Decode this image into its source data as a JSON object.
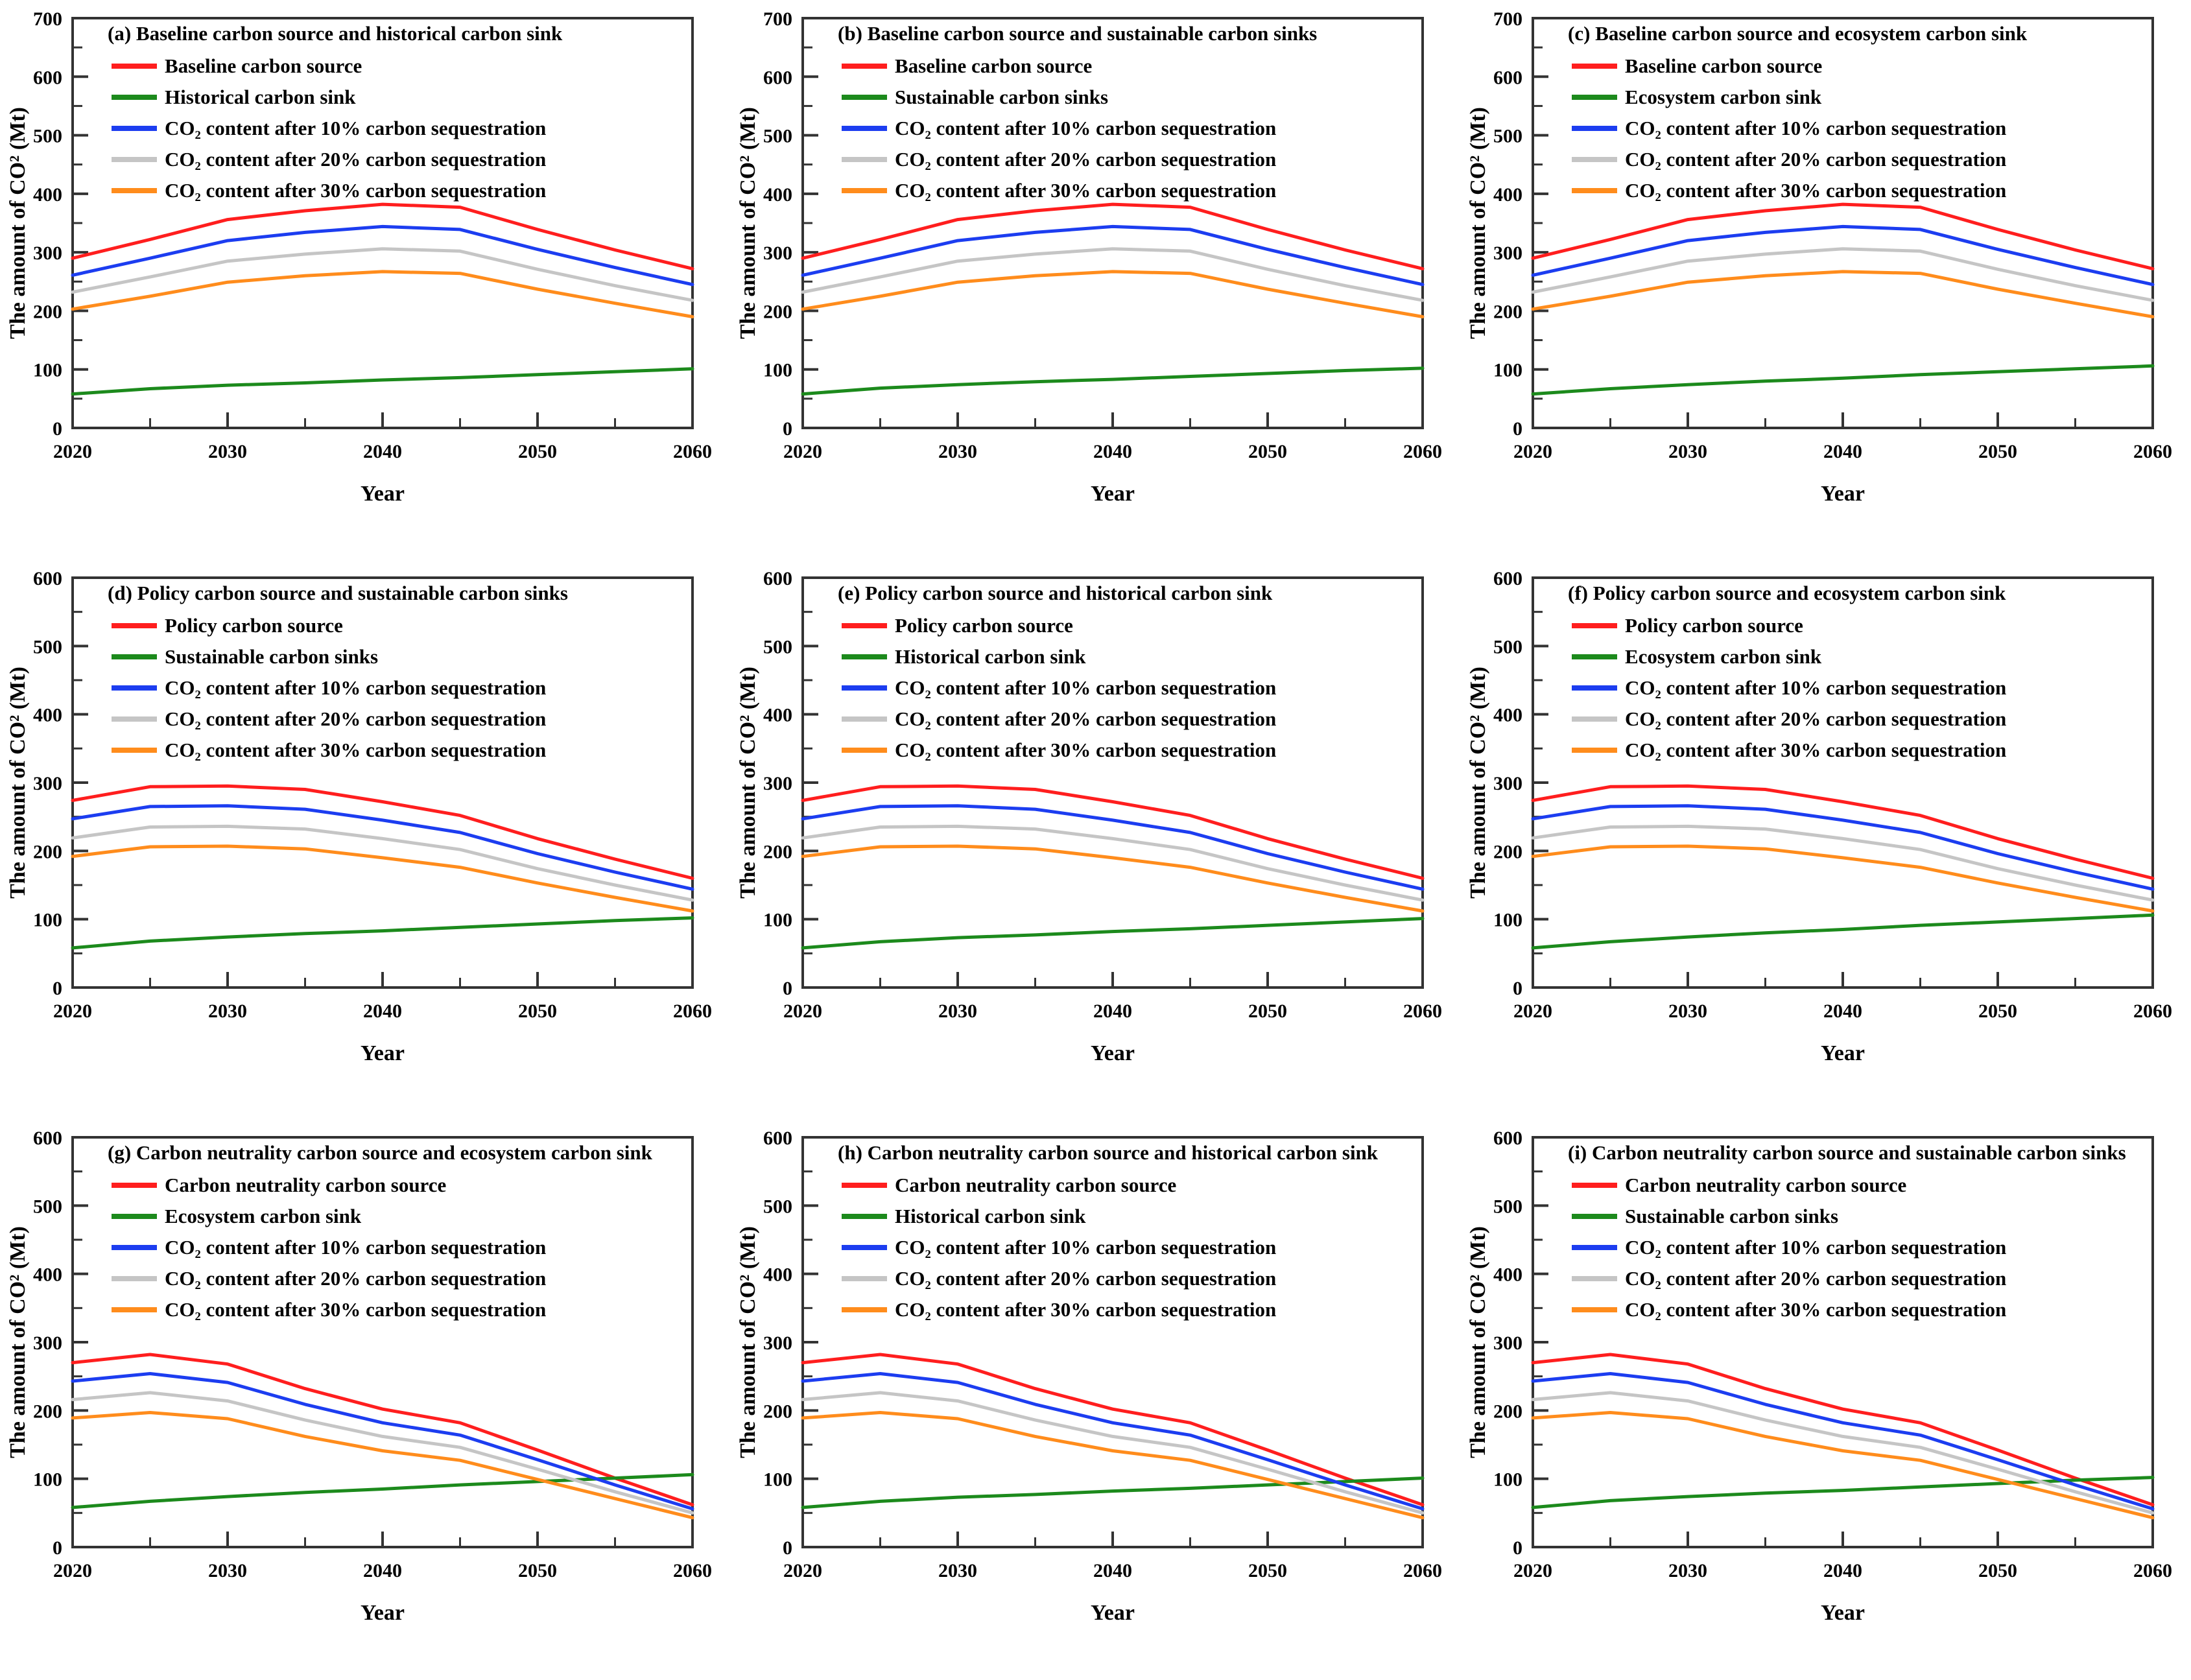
{
  "figure": {
    "background": "#ffffff",
    "xlabel": "Year",
    "ylabel": "The amount of CO² (Mt)"
  },
  "colors": {
    "source": "#FF1E1E",
    "sink": "#1C8A1C",
    "seq10": "#1C3DF0",
    "seq20": "#C5C5C5",
    "seq30": "#FF8C1C",
    "axis": "#333333",
    "text": "#000000"
  },
  "chart_data": [
    {
      "id": "a",
      "type": "line",
      "title": "(a) Baseline carbon source and historical carbon sink",
      "xlabel": "Year",
      "ylabel": "The amount of CO² (Mt)",
      "x": [
        2020,
        2025,
        2030,
        2035,
        2040,
        2045,
        2050,
        2055,
        2060
      ],
      "ylim": [
        0,
        700
      ],
      "y_major_step": 100,
      "y_minor_step": 50,
      "x_major_ticks": [
        2020,
        2030,
        2040,
        2050,
        2060
      ],
      "x_minor_step": 5,
      "grid": false,
      "legend_position": "top-left",
      "series": [
        {
          "name": "Baseline carbon source",
          "color_key": "source",
          "values": [
            290,
            322,
            356,
            371,
            382,
            377,
            339,
            304,
            272
          ]
        },
        {
          "name": "Historical carbon sink",
          "color_key": "sink",
          "values": [
            58,
            67,
            73,
            77,
            82,
            86,
            91,
            96,
            101
          ]
        },
        {
          "name": "CO₂ content after 10% carbon sequestration",
          "color_key": "seq10",
          "values": [
            261,
            290,
            320,
            334,
            344,
            339,
            305,
            274,
            245
          ]
        },
        {
          "name": "CO₂ content after 20% carbon sequestration",
          "color_key": "seq20",
          "values": [
            232,
            258,
            285,
            297,
            306,
            302,
            271,
            243,
            218
          ]
        },
        {
          "name": "CO₂ content after 30% carbon sequestration",
          "color_key": "seq30",
          "values": [
            203,
            225,
            249,
            260,
            267,
            264,
            237,
            213,
            190
          ]
        }
      ]
    },
    {
      "id": "b",
      "type": "line",
      "title": "(b) Baseline carbon source and sustainable carbon sinks",
      "xlabel": "Year",
      "ylabel": "The amount of CO² (Mt)",
      "x": [
        2020,
        2025,
        2030,
        2035,
        2040,
        2045,
        2050,
        2055,
        2060
      ],
      "ylim": [
        0,
        700
      ],
      "y_major_step": 100,
      "y_minor_step": 50,
      "x_major_ticks": [
        2020,
        2030,
        2040,
        2050,
        2060
      ],
      "x_minor_step": 5,
      "grid": false,
      "legend_position": "top-left",
      "series": [
        {
          "name": "Baseline carbon source",
          "color_key": "source",
          "values": [
            290,
            322,
            356,
            371,
            382,
            377,
            339,
            304,
            272
          ]
        },
        {
          "name": "Sustainable carbon sinks",
          "color_key": "sink",
          "values": [
            58,
            68,
            74,
            79,
            83,
            88,
            93,
            98,
            102
          ]
        },
        {
          "name": "CO₂ content after 10% carbon sequestration",
          "color_key": "seq10",
          "values": [
            261,
            290,
            320,
            334,
            344,
            339,
            305,
            274,
            245
          ]
        },
        {
          "name": "CO₂ content after 20% carbon sequestration",
          "color_key": "seq20",
          "values": [
            232,
            258,
            285,
            297,
            306,
            302,
            271,
            243,
            218
          ]
        },
        {
          "name": "CO₂ content after 30% carbon sequestration",
          "color_key": "seq30",
          "values": [
            203,
            225,
            249,
            260,
            267,
            264,
            237,
            213,
            190
          ]
        }
      ]
    },
    {
      "id": "c",
      "type": "line",
      "title": "(c) Baseline carbon source and ecosystem carbon sink",
      "xlabel": "Year",
      "ylabel": "The amount of CO² (Mt)",
      "x": [
        2020,
        2025,
        2030,
        2035,
        2040,
        2045,
        2050,
        2055,
        2060
      ],
      "ylim": [
        0,
        700
      ],
      "y_major_step": 100,
      "y_minor_step": 50,
      "x_major_ticks": [
        2020,
        2030,
        2040,
        2050,
        2060
      ],
      "x_minor_step": 5,
      "grid": false,
      "legend_position": "top-left",
      "series": [
        {
          "name": "Baseline carbon source",
          "color_key": "source",
          "values": [
            290,
            322,
            356,
            371,
            382,
            377,
            339,
            304,
            272
          ]
        },
        {
          "name": "Ecosystem carbon sink",
          "color_key": "sink",
          "values": [
            58,
            67,
            74,
            80,
            85,
            91,
            96,
            101,
            106
          ]
        },
        {
          "name": "CO₂ content after 10% carbon sequestration",
          "color_key": "seq10",
          "values": [
            261,
            290,
            320,
            334,
            344,
            339,
            305,
            274,
            245
          ]
        },
        {
          "name": "CO₂ content after 20% carbon sequestration",
          "color_key": "seq20",
          "values": [
            232,
            258,
            285,
            297,
            306,
            302,
            271,
            243,
            218
          ]
        },
        {
          "name": "CO₂ content after 30% carbon sequestration",
          "color_key": "seq30",
          "values": [
            203,
            225,
            249,
            260,
            267,
            264,
            237,
            213,
            190
          ]
        }
      ]
    },
    {
      "id": "d",
      "type": "line",
      "title": "(d) Policy carbon source and sustainable carbon sinks",
      "xlabel": "Year",
      "ylabel": "The amount of CO² (Mt)",
      "x": [
        2020,
        2025,
        2030,
        2035,
        2040,
        2045,
        2050,
        2055,
        2060
      ],
      "ylim": [
        0,
        600
      ],
      "y_major_step": 100,
      "y_minor_step": 50,
      "x_major_ticks": [
        2020,
        2030,
        2040,
        2050,
        2060
      ],
      "x_minor_step": 5,
      "grid": false,
      "legend_position": "top-left",
      "series": [
        {
          "name": "Policy carbon source",
          "color_key": "source",
          "values": [
            274,
            294,
            295,
            290,
            272,
            252,
            218,
            188,
            160
          ]
        },
        {
          "name": "Sustainable carbon sinks",
          "color_key": "sink",
          "values": [
            58,
            68,
            74,
            79,
            83,
            88,
            93,
            98,
            102
          ]
        },
        {
          "name": "CO₂ content after 10% carbon sequestration",
          "color_key": "seq10",
          "values": [
            247,
            265,
            266,
            261,
            245,
            227,
            196,
            169,
            144
          ]
        },
        {
          "name": "CO₂ content after 20% carbon sequestration",
          "color_key": "seq20",
          "values": [
            219,
            235,
            236,
            232,
            218,
            202,
            174,
            150,
            128
          ]
        },
        {
          "name": "CO₂ content after 30% carbon sequestration",
          "color_key": "seq30",
          "values": [
            192,
            206,
            207,
            203,
            190,
            176,
            153,
            132,
            112
          ]
        }
      ]
    },
    {
      "id": "e",
      "type": "line",
      "title": "(e) Policy carbon source and historical carbon sink",
      "xlabel": "Year",
      "ylabel": "The amount of CO² (Mt)",
      "x": [
        2020,
        2025,
        2030,
        2035,
        2040,
        2045,
        2050,
        2055,
        2060
      ],
      "ylim": [
        0,
        600
      ],
      "y_major_step": 100,
      "y_minor_step": 50,
      "x_major_ticks": [
        2020,
        2030,
        2040,
        2050,
        2060
      ],
      "x_minor_step": 5,
      "grid": false,
      "legend_position": "top-left",
      "series": [
        {
          "name": "Policy carbon source",
          "color_key": "source",
          "values": [
            274,
            294,
            295,
            290,
            272,
            252,
            218,
            188,
            160
          ]
        },
        {
          "name": "Historical carbon sink",
          "color_key": "sink",
          "values": [
            58,
            67,
            73,
            77,
            82,
            86,
            91,
            96,
            101
          ]
        },
        {
          "name": "CO₂ content after 10% carbon sequestration",
          "color_key": "seq10",
          "values": [
            247,
            265,
            266,
            261,
            245,
            227,
            196,
            169,
            144
          ]
        },
        {
          "name": "CO₂ content after 20% carbon sequestration",
          "color_key": "seq20",
          "values": [
            219,
            235,
            236,
            232,
            218,
            202,
            174,
            150,
            128
          ]
        },
        {
          "name": "CO₂ content after 30% carbon sequestration",
          "color_key": "seq30",
          "values": [
            192,
            206,
            207,
            203,
            190,
            176,
            153,
            132,
            112
          ]
        }
      ]
    },
    {
      "id": "f",
      "type": "line",
      "title": "(f) Policy carbon source and ecosystem carbon sink",
      "xlabel": "Year",
      "ylabel": "The amount of CO² (Mt)",
      "x": [
        2020,
        2025,
        2030,
        2035,
        2040,
        2045,
        2050,
        2055,
        2060
      ],
      "ylim": [
        0,
        600
      ],
      "y_major_step": 100,
      "y_minor_step": 50,
      "x_major_ticks": [
        2020,
        2030,
        2040,
        2050,
        2060
      ],
      "x_minor_step": 5,
      "grid": false,
      "legend_position": "top-left",
      "series": [
        {
          "name": "Policy carbon source",
          "color_key": "source",
          "values": [
            274,
            294,
            295,
            290,
            272,
            252,
            218,
            188,
            160
          ]
        },
        {
          "name": "Ecosystem carbon sink",
          "color_key": "sink",
          "values": [
            58,
            67,
            74,
            80,
            85,
            91,
            96,
            101,
            106
          ]
        },
        {
          "name": "CO₂ content after 10% carbon sequestration",
          "color_key": "seq10",
          "values": [
            247,
            265,
            266,
            261,
            245,
            227,
            196,
            169,
            144
          ]
        },
        {
          "name": "CO₂ content after 20% carbon sequestration",
          "color_key": "seq20",
          "values": [
            219,
            235,
            236,
            232,
            218,
            202,
            174,
            150,
            128
          ]
        },
        {
          "name": "CO₂ content after 30% carbon sequestration",
          "color_key": "seq30",
          "values": [
            192,
            206,
            207,
            203,
            190,
            176,
            153,
            132,
            112
          ]
        }
      ]
    },
    {
      "id": "g",
      "type": "line",
      "title": "(g) Carbon neutrality carbon source and ecosystem carbon sink",
      "xlabel": "Year",
      "ylabel": "The amount of CO² (Mt)",
      "x": [
        2020,
        2025,
        2030,
        2035,
        2040,
        2045,
        2050,
        2055,
        2060
      ],
      "ylim": [
        0,
        600
      ],
      "y_major_step": 100,
      "y_minor_step": 50,
      "x_major_ticks": [
        2020,
        2030,
        2040,
        2050,
        2060
      ],
      "x_minor_step": 5,
      "grid": false,
      "legend_position": "top-left",
      "series": [
        {
          "name": "Carbon neutrality carbon source",
          "color_key": "source",
          "values": [
            270,
            282,
            268,
            232,
            202,
            182,
            142,
            101,
            62
          ]
        },
        {
          "name": "Ecosystem carbon sink",
          "color_key": "sink",
          "values": [
            58,
            67,
            74,
            80,
            85,
            91,
            96,
            101,
            106
          ]
        },
        {
          "name": "CO₂ content after 10% carbon sequestration",
          "color_key": "seq10",
          "values": [
            243,
            254,
            241,
            209,
            182,
            164,
            128,
            91,
            56
          ]
        },
        {
          "name": "CO₂ content after 20% carbon sequestration",
          "color_key": "seq20",
          "values": [
            216,
            226,
            214,
            186,
            162,
            146,
            114,
            81,
            50
          ]
        },
        {
          "name": "CO₂ content after 30% carbon sequestration",
          "color_key": "seq30",
          "values": [
            189,
            197,
            188,
            162,
            141,
            127,
            99,
            71,
            43
          ]
        }
      ]
    },
    {
      "id": "h",
      "type": "line",
      "title": "(h) Carbon neutrality carbon source and historical carbon sink",
      "xlabel": "Year",
      "ylabel": "The amount of CO² (Mt)",
      "x": [
        2020,
        2025,
        2030,
        2035,
        2040,
        2045,
        2050,
        2055,
        2060
      ],
      "ylim": [
        0,
        600
      ],
      "y_major_step": 100,
      "y_minor_step": 50,
      "x_major_ticks": [
        2020,
        2030,
        2040,
        2050,
        2060
      ],
      "x_minor_step": 5,
      "grid": false,
      "legend_position": "top-left",
      "series": [
        {
          "name": "Carbon neutrality carbon source",
          "color_key": "source",
          "values": [
            270,
            282,
            268,
            232,
            202,
            182,
            142,
            101,
            62
          ]
        },
        {
          "name": "Historical carbon sink",
          "color_key": "sink",
          "values": [
            58,
            67,
            73,
            77,
            82,
            86,
            91,
            96,
            101
          ]
        },
        {
          "name": "CO₂ content after 10% carbon sequestration",
          "color_key": "seq10",
          "values": [
            243,
            254,
            241,
            209,
            182,
            164,
            128,
            91,
            56
          ]
        },
        {
          "name": "CO₂ content after 20% carbon sequestration",
          "color_key": "seq20",
          "values": [
            216,
            226,
            214,
            186,
            162,
            146,
            114,
            81,
            50
          ]
        },
        {
          "name": "CO₂ content after 30% carbon sequestration",
          "color_key": "seq30",
          "values": [
            189,
            197,
            188,
            162,
            141,
            127,
            99,
            71,
            43
          ]
        }
      ]
    },
    {
      "id": "i",
      "type": "line",
      "title": "(i) Carbon neutrality carbon source and sustainable carbon sinks",
      "xlabel": "Year",
      "ylabel": "The amount of CO² (Mt)",
      "x": [
        2020,
        2025,
        2030,
        2035,
        2040,
        2045,
        2050,
        2055,
        2060
      ],
      "ylim": [
        0,
        600
      ],
      "y_major_step": 100,
      "y_minor_step": 50,
      "x_major_ticks": [
        2020,
        2030,
        2040,
        2050,
        2060
      ],
      "x_minor_step": 5,
      "grid": false,
      "legend_position": "top-left",
      "series": [
        {
          "name": "Carbon neutrality carbon source",
          "color_key": "source",
          "values": [
            270,
            282,
            268,
            232,
            202,
            182,
            142,
            101,
            62
          ]
        },
        {
          "name": "Sustainable carbon sinks",
          "color_key": "sink",
          "values": [
            58,
            68,
            74,
            79,
            83,
            88,
            93,
            98,
            102
          ]
        },
        {
          "name": "CO₂ content after 10% carbon sequestration",
          "color_key": "seq10",
          "values": [
            243,
            254,
            241,
            209,
            182,
            164,
            128,
            91,
            56
          ]
        },
        {
          "name": "CO₂ content after 20% carbon sequestration",
          "color_key": "seq20",
          "values": [
            216,
            226,
            214,
            186,
            162,
            146,
            114,
            81,
            50
          ]
        },
        {
          "name": "CO₂ content after 30% carbon sequestration",
          "color_key": "seq30",
          "values": [
            189,
            197,
            188,
            162,
            141,
            127,
            99,
            71,
            43
          ]
        }
      ]
    }
  ]
}
